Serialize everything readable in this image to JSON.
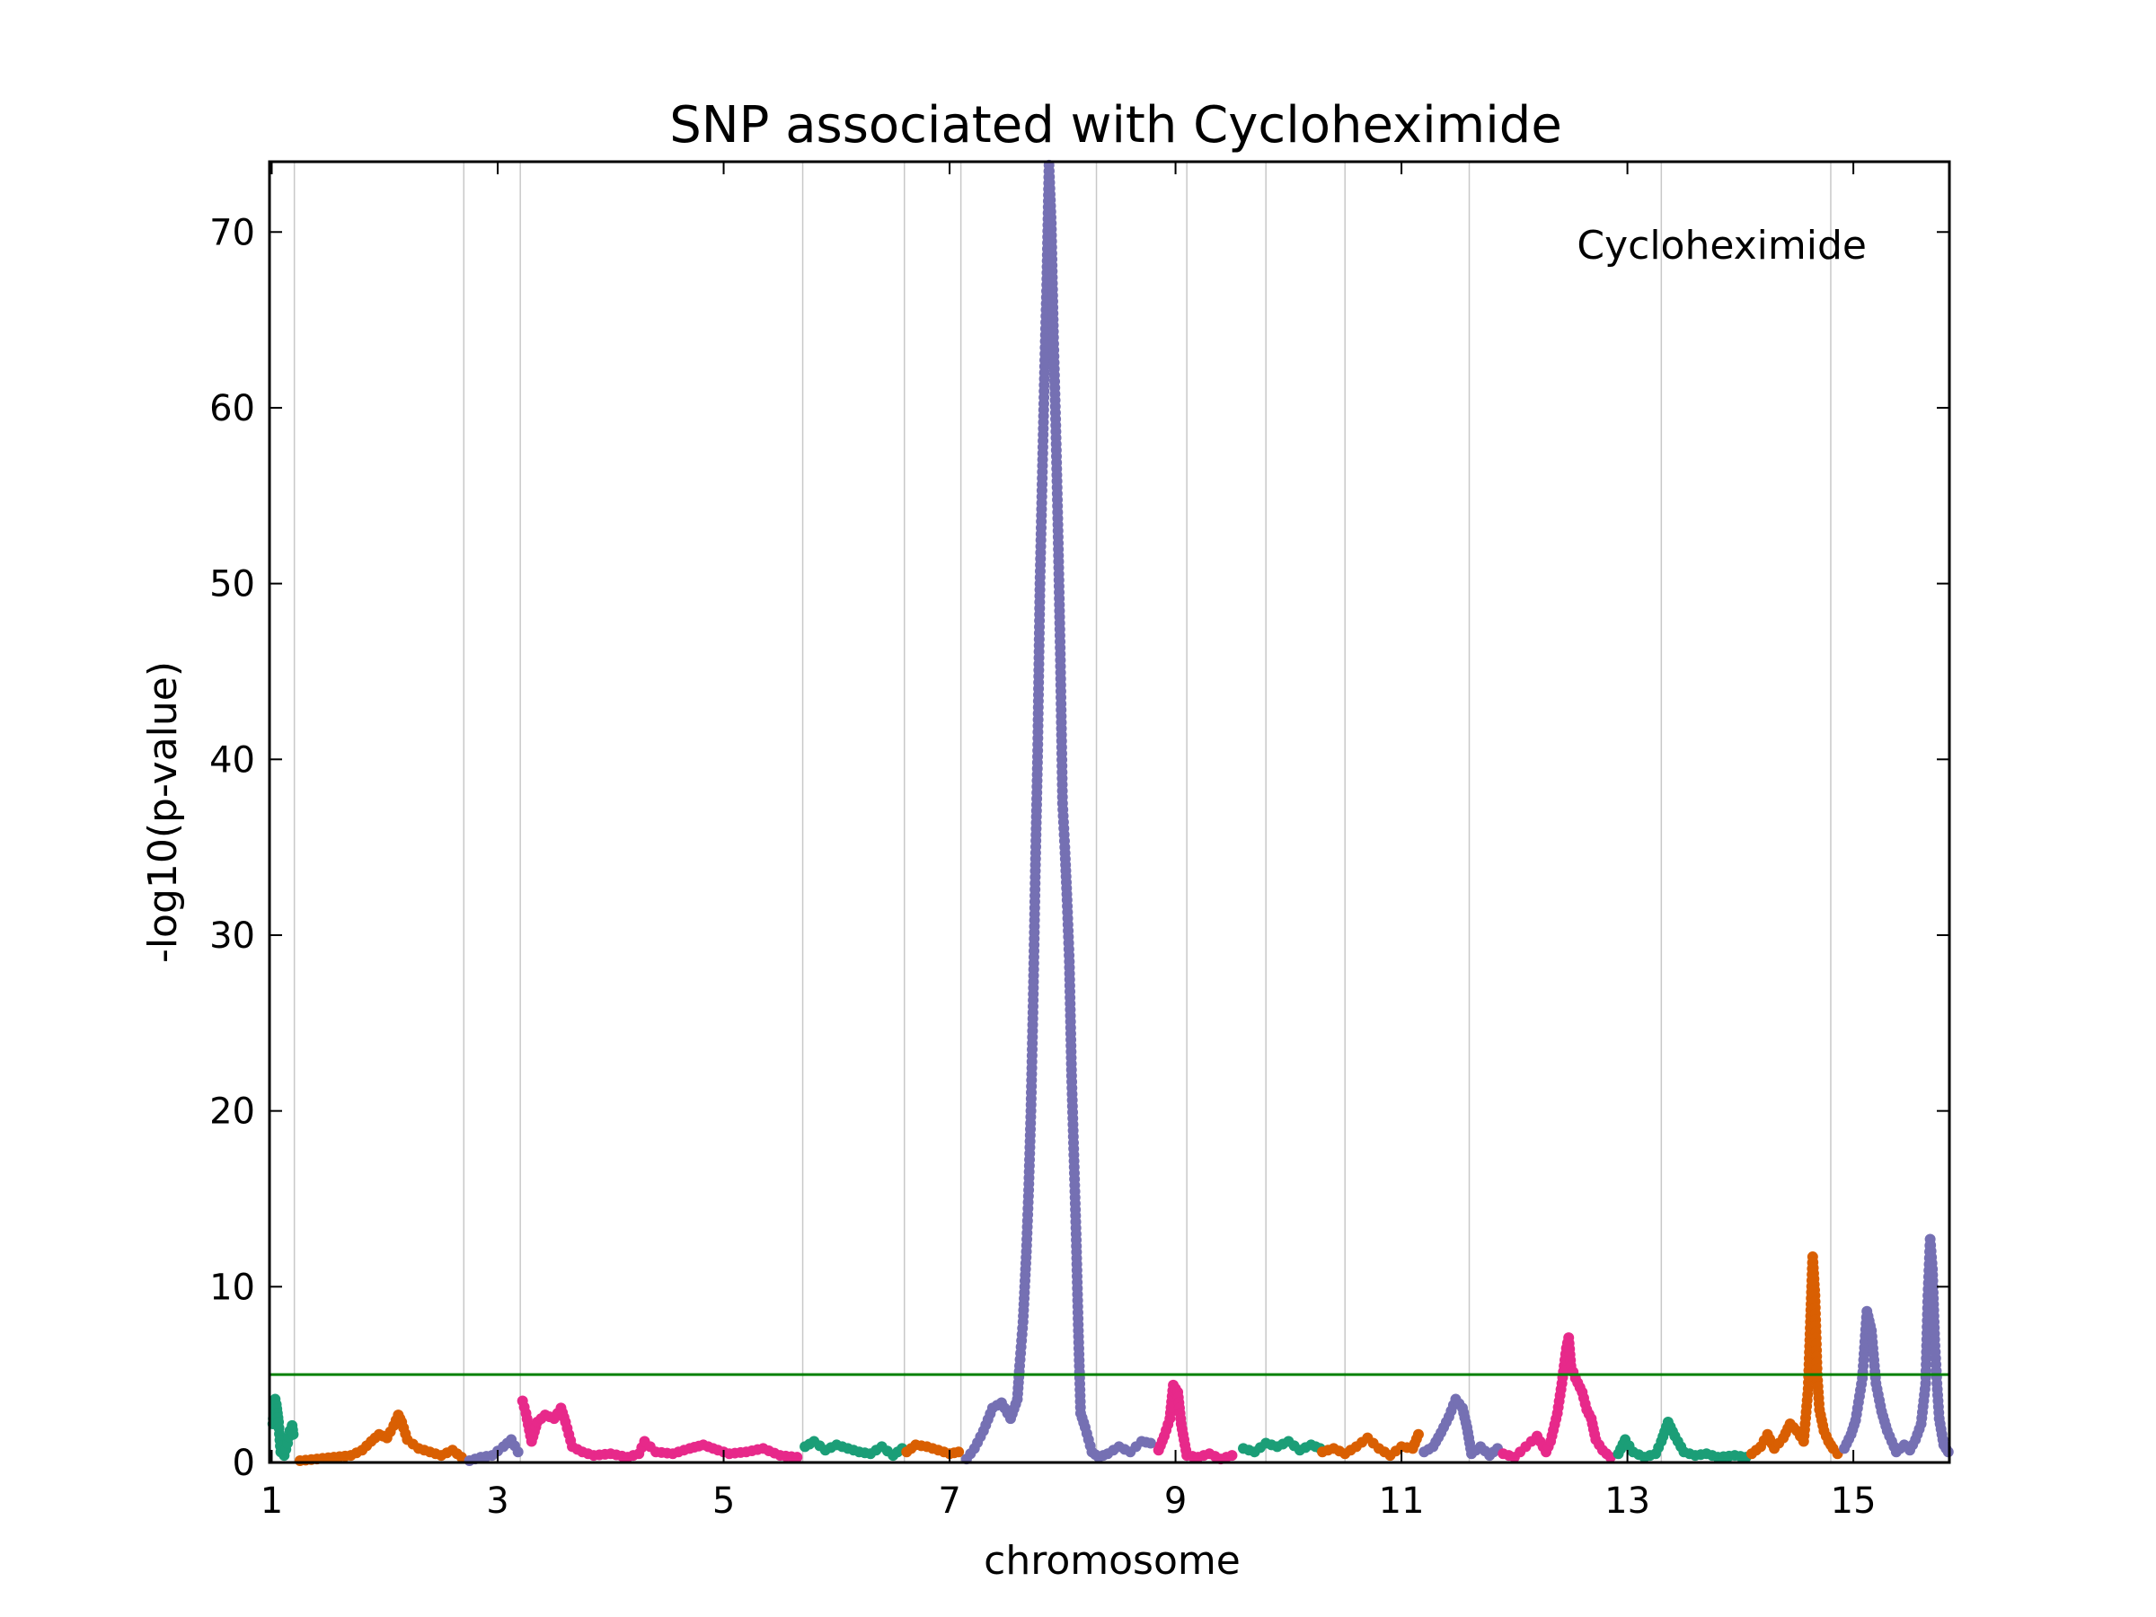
{
  "chart_data": {
    "type": "scatter",
    "title": "SNP associated with Cycloheximide",
    "xlabel": "chromosome",
    "ylabel": "-log10(p-value)",
    "annotation": "Cycloheximide",
    "xlim": [
      0.98,
      15.85
    ],
    "ylim": [
      0,
      74
    ],
    "x_ticks": [
      {
        "value": 1.0,
        "label": "1"
      },
      {
        "value": 3.0,
        "label": "3"
      },
      {
        "value": 5.0,
        "label": "5"
      },
      {
        "value": 7.0,
        "label": "7"
      },
      {
        "value": 9.0,
        "label": "9"
      },
      {
        "value": 11.0,
        "label": "11"
      },
      {
        "value": 13.0,
        "label": "13"
      },
      {
        "value": 15.0,
        "label": "15"
      }
    ],
    "y_ticks": [
      0,
      10,
      20,
      30,
      40,
      50,
      60,
      70
    ],
    "chromosome_boundaries": [
      1.2,
      2.7,
      3.2,
      5.7,
      6.6,
      7.1,
      8.3,
      9.1,
      9.8,
      10.5,
      11.6,
      13.3,
      14.8,
      16.0
    ],
    "threshold": {
      "value": 5.0,
      "color": "#008000"
    },
    "grid": "vertical chromosome boundaries",
    "colors": {
      "chr_a": "#1b9e77",
      "chr_b": "#d95f02",
      "chr_c": "#7570b3",
      "chr_d": "#e7298a",
      "grid": "#c8c8c8"
    },
    "series": [
      {
        "chromosome": "1",
        "color": "#1b9e77",
        "points": [
          [
            1.01,
            2.2
          ],
          [
            1.02,
            3.1
          ],
          [
            1.03,
            3.6
          ],
          [
            1.04,
            3.3
          ],
          [
            1.05,
            2.8
          ],
          [
            1.06,
            2.3
          ],
          [
            1.08,
            0.6
          ],
          [
            1.11,
            0.4
          ],
          [
            1.14,
            1.1
          ],
          [
            1.16,
            1.8
          ],
          [
            1.18,
            2.1
          ],
          [
            1.19,
            1.6
          ]
        ]
      },
      {
        "chromosome": "2",
        "color": "#d95f02",
        "points": [
          [
            1.25,
            0.1
          ],
          [
            1.4,
            0.2
          ],
          [
            1.55,
            0.3
          ],
          [
            1.7,
            0.4
          ],
          [
            1.8,
            0.7
          ],
          [
            1.88,
            1.2
          ],
          [
            1.95,
            1.6
          ],
          [
            2.02,
            1.4
          ],
          [
            2.08,
            2.1
          ],
          [
            2.12,
            2.7
          ],
          [
            2.15,
            2.3
          ],
          [
            2.2,
            1.3
          ],
          [
            2.3,
            0.8
          ],
          [
            2.4,
            0.6
          ],
          [
            2.5,
            0.4
          ],
          [
            2.6,
            0.7
          ],
          [
            2.68,
            0.3
          ]
        ]
      },
      {
        "chromosome": "3",
        "color": "#7570b3",
        "points": [
          [
            2.75,
            0.1
          ],
          [
            2.85,
            0.3
          ],
          [
            2.95,
            0.4
          ],
          [
            3.05,
            0.9
          ],
          [
            3.12,
            1.3
          ],
          [
            3.18,
            0.6
          ]
        ]
      },
      {
        "chromosome": "4",
        "color": "#e7298a",
        "points": [
          [
            3.22,
            3.5
          ],
          [
            3.25,
            2.8
          ],
          [
            3.3,
            1.2
          ],
          [
            3.35,
            2.3
          ],
          [
            3.42,
            2.7
          ],
          [
            3.5,
            2.5
          ],
          [
            3.56,
            3.1
          ],
          [
            3.6,
            2.3
          ],
          [
            3.66,
            0.9
          ],
          [
            3.75,
            0.6
          ],
          [
            3.85,
            0.4
          ],
          [
            4.0,
            0.5
          ],
          [
            4.15,
            0.3
          ],
          [
            4.25,
            0.5
          ],
          [
            4.3,
            1.2
          ],
          [
            4.4,
            0.6
          ],
          [
            4.55,
            0.5
          ],
          [
            4.7,
            0.8
          ],
          [
            4.82,
            1.0
          ],
          [
            4.95,
            0.7
          ],
          [
            5.05,
            0.5
          ],
          [
            5.2,
            0.6
          ],
          [
            5.35,
            0.8
          ],
          [
            5.5,
            0.4
          ],
          [
            5.65,
            0.3
          ]
        ]
      },
      {
        "chromosome": "5",
        "color": "#1b9e77",
        "points": [
          [
            5.72,
            0.9
          ],
          [
            5.8,
            1.2
          ],
          [
            5.9,
            0.7
          ],
          [
            6.0,
            1.0
          ],
          [
            6.1,
            0.8
          ],
          [
            6.2,
            0.6
          ],
          [
            6.3,
            0.5
          ],
          [
            6.4,
            0.9
          ],
          [
            6.5,
            0.4
          ],
          [
            6.58,
            0.8
          ]
        ]
      },
      {
        "chromosome": "6",
        "color": "#d95f02",
        "points": [
          [
            6.62,
            0.6
          ],
          [
            6.7,
            1.0
          ],
          [
            6.8,
            0.9
          ],
          [
            6.9,
            0.7
          ],
          [
            7.0,
            0.5
          ],
          [
            7.08,
            0.6
          ]
        ]
      },
      {
        "chromosome": "7",
        "color": "#7570b3",
        "points": [
          [
            7.15,
            0.2
          ],
          [
            7.22,
            0.8
          ],
          [
            7.3,
            1.8
          ],
          [
            7.38,
            3.1
          ],
          [
            7.46,
            3.4
          ],
          [
            7.54,
            2.5
          ],
          [
            7.6,
            3.6
          ],
          [
            7.62,
            5.5
          ],
          [
            7.65,
            8.0
          ],
          [
            7.68,
            12.0
          ],
          [
            7.7,
            15.5
          ],
          [
            7.72,
            20.0
          ],
          [
            7.74,
            26.3
          ],
          [
            7.76,
            34.0
          ],
          [
            7.78,
            40.5
          ],
          [
            7.8,
            50.0
          ],
          [
            7.82,
            56.0
          ],
          [
            7.84,
            62.0
          ],
          [
            7.86,
            67.0
          ],
          [
            7.88,
            73.8
          ],
          [
            7.9,
            70.5
          ],
          [
            7.92,
            64.0
          ],
          [
            7.94,
            59.0
          ],
          [
            7.96,
            53.0
          ],
          [
            7.98,
            46.0
          ],
          [
            8.0,
            37.5
          ],
          [
            8.02,
            35.0
          ],
          [
            8.04,
            32.0
          ],
          [
            8.06,
            28.5
          ],
          [
            8.08,
            22.0
          ],
          [
            8.1,
            17.5
          ],
          [
            8.12,
            13.0
          ],
          [
            8.14,
            7.5
          ],
          [
            8.16,
            2.8
          ],
          [
            8.2,
            2.0
          ],
          [
            8.26,
            0.6
          ],
          [
            8.32,
            0.3
          ],
          [
            8.4,
            0.5
          ],
          [
            8.5,
            0.9
          ],
          [
            8.6,
            0.6
          ],
          [
            8.7,
            1.2
          ],
          [
            8.78,
            1.1
          ]
        ]
      },
      {
        "chromosome": "8",
        "color": "#e7298a",
        "points": [
          [
            8.85,
            0.7
          ],
          [
            8.9,
            1.5
          ],
          [
            8.95,
            2.5
          ],
          [
            8.98,
            4.4
          ],
          [
            9.02,
            4.0
          ],
          [
            9.05,
            2.2
          ],
          [
            9.1,
            0.4
          ],
          [
            9.2,
            0.3
          ],
          [
            9.3,
            0.5
          ],
          [
            9.4,
            0.2
          ],
          [
            9.5,
            0.4
          ]
        ]
      },
      {
        "chromosome": "9",
        "color": "#1b9e77",
        "points": [
          [
            9.6,
            0.8
          ],
          [
            9.7,
            0.6
          ],
          [
            9.8,
            1.1
          ],
          [
            9.9,
            0.9
          ],
          [
            10.0,
            1.2
          ],
          [
            10.1,
            0.7
          ],
          [
            10.2,
            1.0
          ],
          [
            10.28,
            0.8
          ]
        ]
      },
      {
        "chromosome": "10",
        "color": "#d95f02",
        "points": [
          [
            10.3,
            0.6
          ],
          [
            10.4,
            0.8
          ],
          [
            10.5,
            0.5
          ],
          [
            10.6,
            0.9
          ],
          [
            10.7,
            1.4
          ],
          [
            10.8,
            0.8
          ],
          [
            10.9,
            0.4
          ],
          [
            11.0,
            0.9
          ],
          [
            11.1,
            0.8
          ],
          [
            11.15,
            1.6
          ]
        ]
      },
      {
        "chromosome": "11",
        "color": "#7570b3",
        "points": [
          [
            11.2,
            0.6
          ],
          [
            11.28,
            0.9
          ],
          [
            11.35,
            1.7
          ],
          [
            11.42,
            2.6
          ],
          [
            11.48,
            3.6
          ],
          [
            11.54,
            3.1
          ],
          [
            11.58,
            2.0
          ],
          [
            11.62,
            0.5
          ],
          [
            11.7,
            0.9
          ],
          [
            11.78,
            0.4
          ],
          [
            11.85,
            0.8
          ]
        ]
      },
      {
        "chromosome": "12",
        "color": "#e7298a",
        "points": [
          [
            11.9,
            0.5
          ],
          [
            12.0,
            0.3
          ],
          [
            12.1,
            0.9
          ],
          [
            12.2,
            1.5
          ],
          [
            12.28,
            0.6
          ],
          [
            12.32,
            1.2
          ],
          [
            12.38,
            2.8
          ],
          [
            12.42,
            4.5
          ],
          [
            12.46,
            6.5
          ],
          [
            12.48,
            7.1
          ],
          [
            12.5,
            5.5
          ],
          [
            12.54,
            4.8
          ],
          [
            12.6,
            4.0
          ],
          [
            12.64,
            3.0
          ],
          [
            12.68,
            2.5
          ],
          [
            12.72,
            1.3
          ],
          [
            12.78,
            0.7
          ],
          [
            12.85,
            0.3
          ]
        ]
      },
      {
        "chromosome": "13",
        "color": "#1b9e77",
        "points": [
          [
            12.92,
            0.5
          ],
          [
            12.98,
            1.3
          ],
          [
            13.05,
            0.6
          ],
          [
            13.15,
            0.3
          ],
          [
            13.25,
            0.5
          ],
          [
            13.3,
            1.2
          ],
          [
            13.36,
            2.3
          ],
          [
            13.42,
            1.5
          ],
          [
            13.5,
            0.6
          ],
          [
            13.6,
            0.4
          ],
          [
            13.7,
            0.5
          ],
          [
            13.8,
            0.3
          ],
          [
            13.95,
            0.4
          ],
          [
            14.05,
            0.3
          ]
        ]
      },
      {
        "chromosome": "14",
        "color": "#d95f02",
        "points": [
          [
            14.1,
            0.5
          ],
          [
            14.18,
            0.9
          ],
          [
            14.24,
            1.6
          ],
          [
            14.3,
            0.8
          ],
          [
            14.38,
            1.4
          ],
          [
            14.44,
            2.2
          ],
          [
            14.5,
            1.8
          ],
          [
            14.56,
            1.2
          ],
          [
            14.6,
            4.2
          ],
          [
            14.62,
            8.0
          ],
          [
            14.64,
            11.7
          ],
          [
            14.66,
            9.5
          ],
          [
            14.68,
            5.0
          ],
          [
            14.7,
            3.0
          ],
          [
            14.74,
            1.8
          ],
          [
            14.78,
            1.2
          ],
          [
            14.82,
            0.8
          ],
          [
            14.86,
            0.5
          ]
        ]
      },
      {
        "chromosome": "15",
        "color": "#7570b3",
        "points": [
          [
            14.92,
            0.8
          ],
          [
            14.98,
            1.6
          ],
          [
            15.02,
            2.4
          ],
          [
            15.08,
            4.8
          ],
          [
            15.12,
            8.6
          ],
          [
            15.16,
            7.5
          ],
          [
            15.2,
            4.5
          ],
          [
            15.25,
            2.9
          ],
          [
            15.3,
            1.8
          ],
          [
            15.38,
            0.6
          ],
          [
            15.45,
            1.0
          ],
          [
            15.5,
            0.7
          ],
          [
            15.55,
            1.3
          ],
          [
            15.6,
            2.2
          ],
          [
            15.64,
            4.5
          ],
          [
            15.66,
            9.5
          ],
          [
            15.68,
            12.7
          ],
          [
            15.7,
            11.0
          ],
          [
            15.72,
            7.0
          ],
          [
            15.74,
            4.5
          ],
          [
            15.76,
            2.5
          ],
          [
            15.8,
            1.0
          ],
          [
            15.84,
            0.6
          ]
        ]
      }
    ]
  }
}
